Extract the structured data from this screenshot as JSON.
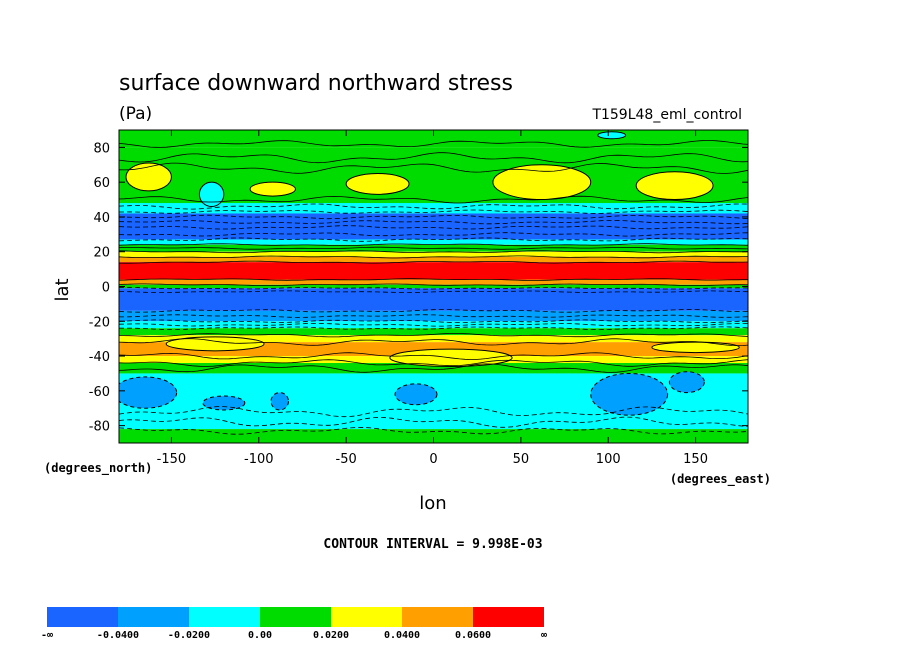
{
  "chart_data": {
    "type": "heatmap",
    "title": "surface downward northward stress",
    "units": "(Pa)",
    "run_label": "T159L48_eml_control",
    "xlabel": "lon",
    "ylabel": "lat",
    "x_units_label": "(degrees_east)",
    "y_units_label": "(degrees_north)",
    "xlim": [
      -180,
      180
    ],
    "ylim": [
      -90,
      90
    ],
    "x_ticks": [
      -150,
      -100,
      -50,
      0,
      50,
      100,
      150
    ],
    "x_tick_labels": [
      "-150",
      "-100",
      "-50",
      "0",
      "50",
      "100",
      "150"
    ],
    "y_ticks": [
      80,
      60,
      40,
      20,
      0,
      -20,
      -40,
      -60,
      -80
    ],
    "y_tick_labels": [
      "80",
      "60",
      "40",
      "20",
      "0",
      "-20",
      "-40",
      "-60",
      "-80"
    ],
    "contour_interval_text": "CONTOUR INTERVAL = 9.998E-03",
    "colorbar": {
      "colors": [
        "#1a64ff",
        "#00a0ff",
        "#00ffff",
        "#00dc00",
        "#ffff00",
        "#ffa000",
        "#ff0000"
      ],
      "labels": [
        "-∞",
        "-0.0400",
        "-0.0200",
        "0.00",
        "0.0200",
        "0.0400",
        "0.0600",
        "∞"
      ]
    },
    "bands": [
      {
        "lat0": 80,
        "lat1": 90,
        "color": "#00dc00"
      },
      {
        "lat0": 45,
        "lat1": 80,
        "color": "#00dc00"
      },
      {
        "lat0": 42,
        "lat1": 48,
        "color": "#00ffff"
      },
      {
        "lat0": 27,
        "lat1": 42,
        "color": "#1a64ff"
      },
      {
        "lat0": 24,
        "lat1": 27,
        "color": "#00ffff"
      },
      {
        "lat0": 20,
        "lat1": 24,
        "color": "#00dc00"
      },
      {
        "lat0": 17,
        "lat1": 20,
        "color": "#ffff00"
      },
      {
        "lat0": 14,
        "lat1": 17,
        "color": "#ffa000"
      },
      {
        "lat0": 4,
        "lat1": 14,
        "color": "#ff0000"
      },
      {
        "lat0": 1,
        "lat1": 4,
        "color": "#ffa000"
      },
      {
        "lat0": -1,
        "lat1": 1,
        "color": "#00dc00"
      },
      {
        "lat0": -14,
        "lat1": -1,
        "color": "#1a64ff"
      },
      {
        "lat0": -20,
        "lat1": -14,
        "color": "#00a0ff"
      },
      {
        "lat0": -24,
        "lat1": -20,
        "color": "#00ffff"
      },
      {
        "lat0": -28,
        "lat1": -24,
        "color": "#00dc00"
      },
      {
        "lat0": -32,
        "lat1": -28,
        "color": "#ffff00"
      },
      {
        "lat0": -40,
        "lat1": -32,
        "color": "#ffa000"
      },
      {
        "lat0": -44,
        "lat1": -40,
        "color": "#ffff00"
      },
      {
        "lat0": -50,
        "lat1": -44,
        "color": "#00dc00"
      },
      {
        "lat0": -82,
        "lat1": -50,
        "color": "#00ffff"
      },
      {
        "lat0": -90,
        "lat1": -82,
        "color": "#00dc00"
      }
    ],
    "blobs": [
      {
        "lon": -163,
        "lat": 63,
        "rlon": 13,
        "rlat": 8,
        "color": "#ffff00"
      },
      {
        "lon": -92,
        "lat": 56,
        "rlon": 13,
        "rlat": 4,
        "color": "#ffff00"
      },
      {
        "lon": -32,
        "lat": 59,
        "rlon": 18,
        "rlat": 6,
        "color": "#ffff00"
      },
      {
        "lon": 62,
        "lat": 60,
        "rlon": 28,
        "rlat": 10,
        "color": "#ffff00"
      },
      {
        "lon": 138,
        "lat": 58,
        "rlon": 22,
        "rlat": 8,
        "color": "#ffff00"
      },
      {
        "lon": -127,
        "lat": 53,
        "rlon": 7,
        "rlat": 7,
        "color": "#00ffff"
      },
      {
        "lon": 102,
        "lat": 87,
        "rlon": 8,
        "rlat": 2,
        "color": "#00ffff"
      },
      {
        "lon": -125,
        "lat": -33,
        "rlon": 28,
        "rlat": 4,
        "color": "#ffff00"
      },
      {
        "lon": 10,
        "lat": -41,
        "rlon": 35,
        "rlat": 5,
        "color": "#ffff00"
      },
      {
        "lon": 150,
        "lat": -35,
        "rlon": 25,
        "rlat": 3,
        "color": "#ffff00"
      },
      {
        "lon": -165,
        "lat": -61,
        "rlon": 18,
        "rlat": 9,
        "color": "#00a0ff"
      },
      {
        "lon": -120,
        "lat": -67,
        "rlon": 12,
        "rlat": 4,
        "color": "#00a0ff"
      },
      {
        "lon": -88,
        "lat": -66,
        "rlon": 5,
        "rlat": 5,
        "color": "#00a0ff"
      },
      {
        "lon": -10,
        "lat": -62,
        "rlon": 12,
        "rlat": 6,
        "color": "#00a0ff"
      },
      {
        "lon": 112,
        "lat": -62,
        "rlon": 22,
        "rlat": 12,
        "color": "#00a0ff"
      },
      {
        "lon": 145,
        "lat": -55,
        "rlon": 10,
        "rlat": 6,
        "color": "#00a0ff"
      }
    ],
    "contours": [
      {
        "lat": 82,
        "amp": 2,
        "style": "solid"
      },
      {
        "lat": 74,
        "amp": 3,
        "style": "solid"
      },
      {
        "lat": 68,
        "amp": 3,
        "style": "solid"
      },
      {
        "lat": 50,
        "amp": 2,
        "style": "solid"
      },
      {
        "lat": 46,
        "amp": 1.5,
        "style": "dashed"
      },
      {
        "lat": 43,
        "amp": 1,
        "style": "dashed"
      },
      {
        "lat": 40,
        "amp": 1,
        "style": "dashed"
      },
      {
        "lat": 37,
        "amp": 1,
        "style": "dashed"
      },
      {
        "lat": 34,
        "amp": 1,
        "style": "dashed"
      },
      {
        "lat": 30,
        "amp": 1,
        "style": "dashed"
      },
      {
        "lat": 27,
        "amp": 1,
        "style": "dashed"
      },
      {
        "lat": 24,
        "amp": 0.6,
        "style": "solid"
      },
      {
        "lat": 22,
        "amp": 0.6,
        "style": "solid"
      },
      {
        "lat": 20,
        "amp": 0.6,
        "style": "solid"
      },
      {
        "lat": 17,
        "amp": 0.6,
        "style": "solid"
      },
      {
        "lat": 14,
        "amp": 0.6,
        "style": "solid"
      },
      {
        "lat": 4,
        "amp": 0.5,
        "style": "solid"
      },
      {
        "lat": 1,
        "amp": 0.5,
        "style": "solid"
      },
      {
        "lat": -1,
        "amp": 0.5,
        "style": "dashed"
      },
      {
        "lat": -3,
        "amp": 0.5,
        "style": "dashed"
      },
      {
        "lat": -14,
        "amp": 0.8,
        "style": "dashed"
      },
      {
        "lat": -17,
        "amp": 0.8,
        "style": "dashed"
      },
      {
        "lat": -20,
        "amp": 0.8,
        "style": "dashed"
      },
      {
        "lat": -22,
        "amp": 0.8,
        "style": "dashed"
      },
      {
        "lat": -24,
        "amp": 0.8,
        "style": "dashed"
      },
      {
        "lat": -28,
        "amp": 1,
        "style": "solid"
      },
      {
        "lat": -32,
        "amp": 2,
        "style": "solid"
      },
      {
        "lat": -40,
        "amp": 2,
        "style": "solid"
      },
      {
        "lat": -44,
        "amp": 2,
        "style": "solid"
      },
      {
        "lat": -47,
        "amp": 2.5,
        "style": "solid"
      },
      {
        "lat": -72,
        "amp": 3,
        "style": "dashed"
      },
      {
        "lat": -78,
        "amp": 3,
        "style": "dashed"
      },
      {
        "lat": -83,
        "amp": 2,
        "style": "dashed"
      }
    ]
  }
}
